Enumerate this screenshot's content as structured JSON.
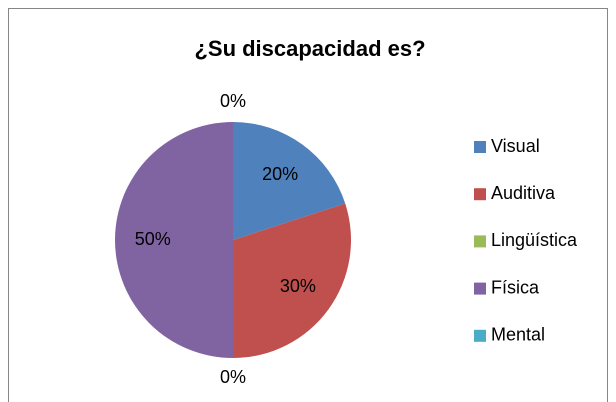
{
  "chart_data": {
    "type": "pie",
    "title": "¿Su discapacidad es?",
    "categories": [
      "Visual",
      "Auditiva",
      "Lingüística",
      "Física",
      "Mental"
    ],
    "values": [
      20,
      30,
      0,
      50,
      0
    ],
    "value_labels": [
      "20%",
      "30%",
      "0%",
      "50%",
      "0%"
    ],
    "colors": [
      "#4f81bd",
      "#c0504d",
      "#9bbb59",
      "#8064a2",
      "#4bacc6"
    ],
    "legend": "right"
  }
}
